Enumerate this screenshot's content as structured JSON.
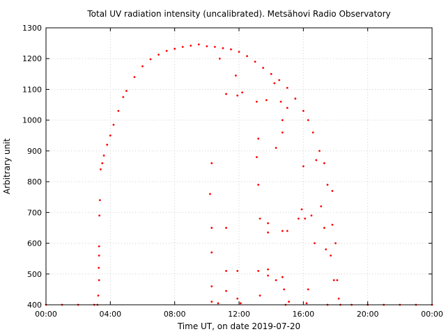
{
  "chart_data": {
    "type": "scatter",
    "title": "Total UV radiation intensity (uncalibrated). Metsähovi Radio Observatory",
    "xlabel": "Time UT, on date 2019-07-20",
    "ylabel": "Arbitrary unit",
    "xlim": [
      0,
      24
    ],
    "ylim": [
      400,
      1300
    ],
    "grid": true,
    "legend": "none",
    "marker_color": "#ff0000",
    "x_ticks": [
      {
        "value": 0,
        "label": "00:00"
      },
      {
        "value": 4,
        "label": "04:00"
      },
      {
        "value": 8,
        "label": "08:00"
      },
      {
        "value": 12,
        "label": "12:00"
      },
      {
        "value": 16,
        "label": "16:00"
      },
      {
        "value": 20,
        "label": "20:00"
      },
      {
        "value": 24,
        "label": "00:00"
      }
    ],
    "y_ticks": [
      {
        "value": 400,
        "label": "400"
      },
      {
        "value": 500,
        "label": "500"
      },
      {
        "value": 600,
        "label": "600"
      },
      {
        "value": 700,
        "label": "700"
      },
      {
        "value": 800,
        "label": "800"
      },
      {
        "value": 900,
        "label": "900"
      },
      {
        "value": 1000,
        "label": "1000"
      },
      {
        "value": 1100,
        "label": "1100"
      },
      {
        "value": 1200,
        "label": "1200"
      },
      {
        "value": 1300,
        "label": "1300"
      }
    ],
    "series": [
      {
        "points": [
          [
            0.0,
            400
          ],
          [
            1.0,
            400
          ],
          [
            2.0,
            400
          ],
          [
            3.0,
            400
          ],
          [
            3.2,
            400
          ],
          [
            3.25,
            430
          ],
          [
            3.28,
            520
          ],
          [
            3.3,
            590
          ],
          [
            3.32,
            690
          ],
          [
            3.35,
            740
          ],
          [
            3.4,
            840
          ],
          [
            3.5,
            860
          ],
          [
            3.6,
            885
          ],
          [
            3.8,
            920
          ],
          [
            4.0,
            950
          ],
          [
            4.2,
            985
          ],
          [
            4.5,
            1030
          ],
          [
            4.8,
            1075
          ],
          [
            5.0,
            1095
          ],
          [
            5.5,
            1140
          ],
          [
            6.0,
            1175
          ],
          [
            6.5,
            1198
          ],
          [
            7.0,
            1213
          ],
          [
            7.5,
            1225
          ],
          [
            8.0,
            1232
          ],
          [
            8.5,
            1238
          ],
          [
            9.0,
            1242
          ],
          [
            9.5,
            1246
          ],
          [
            10.0,
            1240
          ],
          [
            10.5,
            1238
          ],
          [
            11.0,
            1234
          ],
          [
            11.5,
            1230
          ],
          [
            12.0,
            1222
          ],
          [
            12.5,
            1208
          ],
          [
            13.0,
            1190
          ],
          [
            13.5,
            1170
          ],
          [
            14.0,
            1150
          ],
          [
            14.5,
            1130
          ],
          [
            15.0,
            1105
          ],
          [
            15.5,
            1070
          ],
          [
            16.0,
            1030
          ],
          [
            16.3,
            1000
          ],
          [
            16.6,
            960
          ],
          [
            17.0,
            900
          ],
          [
            17.3,
            860
          ],
          [
            17.5,
            790
          ],
          [
            17.8,
            770
          ],
          [
            17.8,
            660
          ],
          [
            18.0,
            600
          ],
          [
            18.1,
            480
          ],
          [
            18.2,
            420
          ],
          [
            18.3,
            400
          ],
          [
            19.0,
            400
          ],
          [
            20.0,
            400
          ],
          [
            21.0,
            400
          ],
          [
            22.0,
            400
          ],
          [
            23.0,
            400
          ],
          [
            24.0,
            400
          ],
          [
            3.3,
            480
          ],
          [
            3.3,
            560
          ],
          [
            10.3,
            860
          ],
          [
            10.2,
            760
          ],
          [
            10.3,
            650
          ],
          [
            10.3,
            570
          ],
          [
            10.3,
            460
          ],
          [
            10.3,
            410
          ],
          [
            10.8,
            1200
          ],
          [
            11.2,
            1085
          ],
          [
            11.2,
            650
          ],
          [
            11.2,
            510
          ],
          [
            11.2,
            445
          ],
          [
            11.8,
            1145
          ],
          [
            11.9,
            1080
          ],
          [
            11.9,
            510
          ],
          [
            11.9,
            420
          ],
          [
            12.2,
            1090
          ],
          [
            13.1,
            1060
          ],
          [
            13.1,
            880
          ],
          [
            13.2,
            940
          ],
          [
            13.2,
            790
          ],
          [
            13.2,
            510
          ],
          [
            13.3,
            680
          ],
          [
            13.3,
            430
          ],
          [
            13.7,
            1065
          ],
          [
            13.8,
            665
          ],
          [
            13.8,
            635
          ],
          [
            13.8,
            515
          ],
          [
            13.8,
            495
          ],
          [
            14.2,
            1120
          ],
          [
            14.3,
            910
          ],
          [
            14.3,
            480
          ],
          [
            14.6,
            1060
          ],
          [
            14.7,
            1000
          ],
          [
            14.7,
            960
          ],
          [
            14.7,
            640
          ],
          [
            14.7,
            490
          ],
          [
            14.8,
            450
          ],
          [
            15.0,
            1040
          ],
          [
            15.0,
            640
          ],
          [
            15.1,
            410
          ],
          [
            15.7,
            680
          ],
          [
            15.9,
            710
          ],
          [
            16.0,
            850
          ],
          [
            16.1,
            680
          ],
          [
            16.3,
            450
          ],
          [
            16.5,
            690
          ],
          [
            16.7,
            600
          ],
          [
            16.8,
            870
          ],
          [
            17.1,
            720
          ],
          [
            17.3,
            650
          ],
          [
            17.4,
            580
          ],
          [
            17.7,
            560
          ],
          [
            17.9,
            480
          ],
          [
            16.2,
            405
          ],
          [
            14.9,
            400
          ],
          [
            12.1,
            405
          ],
          [
            10.7,
            405
          ],
          [
            17.5,
            400
          ]
        ]
      }
    ]
  }
}
